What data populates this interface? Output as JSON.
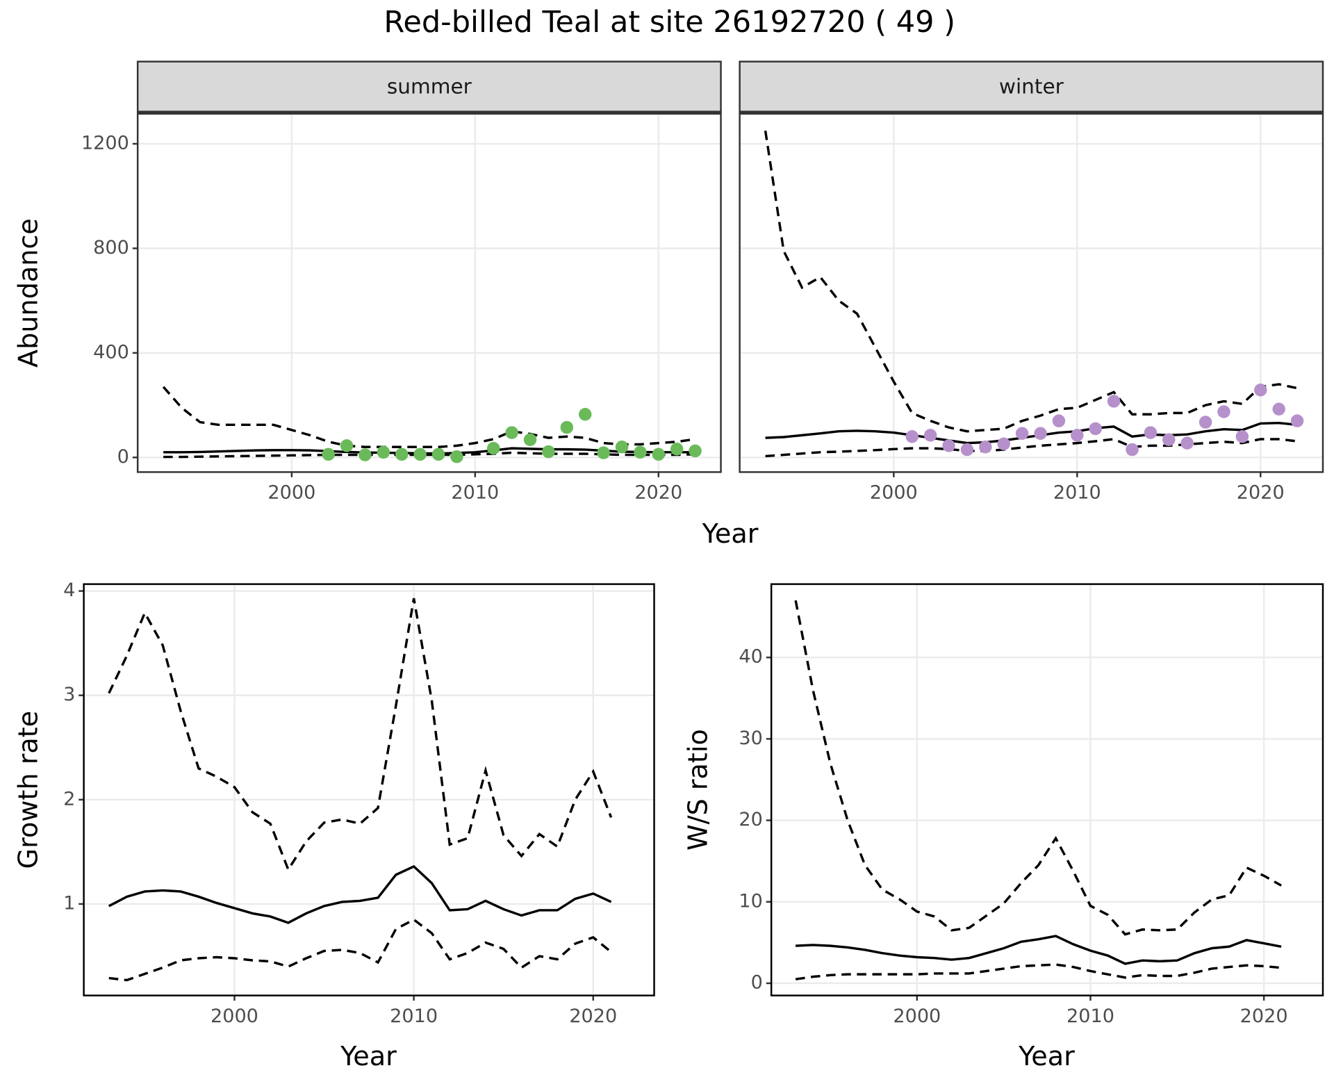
{
  "title": "Red-billed Teal at site 26192720 ( 49 )",
  "chart_data": [
    {
      "type": "line",
      "strip": "summer",
      "xlabel": "Year",
      "ylabel": "Abundance",
      "xlim": [
        1991.6,
        2023.4
      ],
      "ylim": [
        -56,
        1315
      ],
      "xticks": [
        2000,
        2010,
        2020
      ],
      "yticks": [
        0,
        400,
        800,
        1200
      ],
      "show_ytick_labels": true,
      "grid": true,
      "series": [
        {
          "style": "solid",
          "color": "#000000",
          "x": [
            1993,
            1994,
            1995,
            1996,
            1997,
            1998,
            1999,
            2000,
            2001,
            2002,
            2003,
            2004,
            2005,
            2006,
            2007,
            2008,
            2009,
            2010,
            2011,
            2012,
            2013,
            2014,
            2015,
            2016,
            2017,
            2018,
            2019,
            2020,
            2021,
            2022
          ],
          "values": [
            20,
            20,
            21,
            23,
            25,
            27,
            28,
            28,
            27,
            24,
            21,
            19,
            18,
            17,
            16,
            15,
            17,
            20,
            27,
            35,
            33,
            31,
            31,
            30,
            26,
            22,
            21,
            20,
            20,
            20
          ]
        },
        {
          "style": "dashed",
          "color": "#000000",
          "x": [
            1993,
            1994,
            1995,
            1996,
            1997,
            1998,
            1999,
            2000,
            2001,
            2002,
            2003,
            2004,
            2005,
            2006,
            2007,
            2008,
            2009,
            2010,
            2011,
            2012,
            2013,
            2014,
            2015,
            2016,
            2017,
            2018,
            2019,
            2020,
            2021,
            2022
          ],
          "values": [
            270,
            190,
            135,
            125,
            125,
            125,
            125,
            105,
            85,
            60,
            45,
            40,
            40,
            40,
            40,
            40,
            45,
            55,
            70,
            100,
            90,
            75,
            80,
            75,
            55,
            50,
            50,
            55,
            60,
            70
          ]
        },
        {
          "style": "dashed",
          "color": "#000000",
          "x": [
            1993,
            1994,
            1995,
            1996,
            1997,
            1998,
            1999,
            2000,
            2001,
            2002,
            2003,
            2004,
            2005,
            2006,
            2007,
            2008,
            2009,
            2010,
            2011,
            2012,
            2013,
            2014,
            2015,
            2016,
            2017,
            2018,
            2019,
            2020,
            2021,
            2022
          ],
          "values": [
            2,
            2,
            3,
            4,
            5,
            6,
            7,
            8,
            9,
            10,
            10,
            10,
            10,
            10,
            10,
            10,
            10,
            12,
            14,
            18,
            16,
            14,
            14,
            14,
            12,
            10,
            10,
            10,
            10,
            12
          ]
        },
        {
          "style": "points",
          "color": "#6aba5a",
          "x": [
            2002,
            2003,
            2004,
            2005,
            2006,
            2007,
            2008,
            2009,
            2011,
            2012,
            2013,
            2014,
            2015,
            2016,
            2017,
            2018,
            2019,
            2020,
            2021,
            2022
          ],
          "values": [
            12,
            45,
            10,
            20,
            12,
            12,
            12,
            3,
            35,
            95,
            68,
            22,
            115,
            165,
            18,
            40,
            20,
            12,
            32,
            25
          ]
        }
      ]
    },
    {
      "type": "line",
      "strip": "winter",
      "xlim": [
        1991.6,
        2023.4
      ],
      "ylim": [
        -56,
        1315
      ],
      "xticks": [
        2000,
        2010,
        2020
      ],
      "yticks": [
        0,
        400,
        800,
        1200
      ],
      "show_ytick_labels": false,
      "grid": true,
      "series": [
        {
          "style": "solid",
          "color": "#000000",
          "x": [
            1993,
            1994,
            1995,
            1996,
            1997,
            1998,
            1999,
            2000,
            2001,
            2002,
            2003,
            2004,
            2005,
            2006,
            2007,
            2008,
            2009,
            2010,
            2011,
            2012,
            2013,
            2014,
            2015,
            2016,
            2017,
            2018,
            2019,
            2020,
            2021,
            2022
          ],
          "values": [
            75,
            78,
            85,
            92,
            100,
            102,
            100,
            95,
            85,
            75,
            65,
            55,
            58,
            65,
            75,
            85,
            95,
            100,
            112,
            118,
            80,
            88,
            85,
            88,
            100,
            108,
            105,
            130,
            132,
            125
          ]
        },
        {
          "style": "dashed",
          "color": "#000000",
          "x": [
            1993,
            1994,
            1995,
            1996,
            1997,
            1998,
            1999,
            2000,
            2001,
            2002,
            2003,
            2004,
            2005,
            2006,
            2007,
            2008,
            2009,
            2010,
            2011,
            2012,
            2013,
            2014,
            2015,
            2016,
            2017,
            2018,
            2019,
            2020,
            2021,
            2022
          ],
          "values": [
            1250,
            790,
            650,
            690,
            600,
            550,
            420,
            290,
            170,
            140,
            115,
            100,
            105,
            110,
            140,
            160,
            185,
            190,
            220,
            250,
            165,
            165,
            170,
            170,
            200,
            215,
            205,
            270,
            280,
            265
          ]
        },
        {
          "style": "dashed",
          "color": "#000000",
          "x": [
            1993,
            1994,
            1995,
            1996,
            1997,
            1998,
            1999,
            2000,
            2001,
            2002,
            2003,
            2004,
            2005,
            2006,
            2007,
            2008,
            2009,
            2010,
            2011,
            2012,
            2013,
            2014,
            2015,
            2016,
            2017,
            2018,
            2019,
            2020,
            2021,
            2022
          ],
          "values": [
            5,
            10,
            15,
            20,
            22,
            25,
            28,
            32,
            35,
            35,
            32,
            25,
            25,
            30,
            38,
            45,
            50,
            55,
            62,
            70,
            40,
            45,
            45,
            50,
            55,
            60,
            55,
            70,
            70,
            62
          ]
        },
        {
          "style": "points",
          "color": "#b690cb",
          "x": [
            2001,
            2002,
            2003,
            2004,
            2005,
            2006,
            2007,
            2008,
            2009,
            2010,
            2011,
            2012,
            2013,
            2014,
            2015,
            2016,
            2017,
            2018,
            2019,
            2020,
            2021,
            2022
          ],
          "values": [
            80,
            85,
            45,
            30,
            40,
            52,
            92,
            92,
            140,
            85,
            110,
            215,
            30,
            95,
            68,
            55,
            135,
            175,
            80,
            258,
            185,
            140
          ]
        }
      ]
    },
    {
      "type": "line",
      "xlabel": "Year",
      "ylabel": "Growth rate",
      "xlim": [
        1991.6,
        2023.4
      ],
      "ylim": [
        0.123,
        4.066
      ],
      "xticks": [
        2000,
        2010,
        2020
      ],
      "yticks": [
        1,
        2,
        3,
        4
      ],
      "show_ytick_labels": true,
      "grid": true,
      "series": [
        {
          "style": "solid",
          "color": "#000000",
          "x": [
            1993,
            1994,
            1995,
            1996,
            1997,
            1998,
            1999,
            2000,
            2001,
            2002,
            2003,
            2004,
            2005,
            2006,
            2007,
            2008,
            2009,
            2010,
            2011,
            2012,
            2013,
            2014,
            2015,
            2016,
            2017,
            2018,
            2019,
            2020,
            2021
          ],
          "values": [
            0.98,
            1.07,
            1.12,
            1.13,
            1.12,
            1.07,
            1.01,
            0.96,
            0.91,
            0.88,
            0.82,
            0.91,
            0.98,
            1.02,
            1.03,
            1.06,
            1.28,
            1.36,
            1.2,
            0.94,
            0.95,
            1.03,
            0.95,
            0.89,
            0.94,
            0.94,
            1.05,
            1.1,
            1.02
          ]
        },
        {
          "style": "dashed",
          "color": "#000000",
          "x": [
            1993,
            1994,
            1995,
            1996,
            1997,
            1998,
            1999,
            2000,
            2001,
            2002,
            2003,
            2004,
            2005,
            2006,
            2007,
            2008,
            2009,
            2010,
            2011,
            2012,
            2013,
            2014,
            2015,
            2016,
            2017,
            2018,
            2019,
            2020,
            2021
          ],
          "values": [
            3.02,
            3.38,
            3.79,
            3.48,
            2.85,
            2.3,
            2.22,
            2.12,
            1.88,
            1.77,
            1.33,
            1.6,
            1.78,
            1.81,
            1.77,
            1.92,
            2.9,
            3.93,
            2.95,
            1.57,
            1.63,
            2.28,
            1.66,
            1.46,
            1.67,
            1.55,
            2.0,
            2.27,
            1.83
          ]
        },
        {
          "style": "dashed",
          "color": "#000000",
          "x": [
            1993,
            1994,
            1995,
            1996,
            1997,
            1998,
            1999,
            2000,
            2001,
            2002,
            2003,
            2004,
            2005,
            2006,
            2007,
            2008,
            2009,
            2010,
            2011,
            2012,
            2013,
            2014,
            2015,
            2016,
            2017,
            2018,
            2019,
            2020,
            2021
          ],
          "values": [
            0.29,
            0.27,
            0.33,
            0.39,
            0.46,
            0.48,
            0.49,
            0.48,
            0.46,
            0.45,
            0.4,
            0.48,
            0.55,
            0.56,
            0.53,
            0.44,
            0.76,
            0.85,
            0.72,
            0.47,
            0.53,
            0.63,
            0.57,
            0.39,
            0.5,
            0.47,
            0.62,
            0.68,
            0.54
          ]
        }
      ]
    },
    {
      "type": "line",
      "xlabel": "Year",
      "ylabel": "W/S ratio",
      "xlim": [
        1991.6,
        2023.4
      ],
      "ylim": [
        -1.5,
        49
      ],
      "xticks": [
        2000,
        2010,
        2020
      ],
      "yticks": [
        0,
        10,
        20,
        30,
        40
      ],
      "show_ytick_labels": true,
      "grid": true,
      "series": [
        {
          "style": "solid",
          "color": "#000000",
          "x": [
            1993,
            1994,
            1995,
            1996,
            1997,
            1998,
            1999,
            2000,
            2001,
            2002,
            2003,
            2004,
            2005,
            2006,
            2007,
            2008,
            2009,
            2010,
            2011,
            2012,
            2013,
            2014,
            2015,
            2016,
            2017,
            2018,
            2019,
            2020,
            2021
          ],
          "values": [
            4.6,
            4.7,
            4.6,
            4.4,
            4.1,
            3.7,
            3.4,
            3.2,
            3.1,
            2.9,
            3.1,
            3.7,
            4.3,
            5.1,
            5.4,
            5.8,
            4.8,
            4.0,
            3.4,
            2.4,
            2.8,
            2.7,
            2.8,
            3.7,
            4.3,
            4.5,
            5.3,
            4.9,
            4.5
          ]
        },
        {
          "style": "dashed",
          "color": "#000000",
          "x": [
            1993,
            1994,
            1995,
            1996,
            1997,
            1998,
            1999,
            2000,
            2001,
            2002,
            2003,
            2004,
            2005,
            2006,
            2007,
            2008,
            2009,
            2010,
            2011,
            2012,
            2013,
            2014,
            2015,
            2016,
            2017,
            2018,
            2019,
            2020,
            2021
          ],
          "values": [
            47,
            36,
            27,
            20,
            14.5,
            11.5,
            10.3,
            8.8,
            8.2,
            6.5,
            6.8,
            8.3,
            9.8,
            12.3,
            14.5,
            17.8,
            13.8,
            9.5,
            8.4,
            6.0,
            6.6,
            6.5,
            6.6,
            8.7,
            10.3,
            10.8,
            14.2,
            13.2,
            12.0
          ]
        },
        {
          "style": "dashed",
          "color": "#000000",
          "x": [
            1993,
            1994,
            1995,
            1996,
            1997,
            1998,
            1999,
            2000,
            2001,
            2002,
            2003,
            2004,
            2005,
            2006,
            2007,
            2008,
            2009,
            2010,
            2011,
            2012,
            2013,
            2014,
            2015,
            2016,
            2017,
            2018,
            2019,
            2020,
            2021
          ],
          "values": [
            0.5,
            0.8,
            1.0,
            1.1,
            1.1,
            1.1,
            1.1,
            1.1,
            1.2,
            1.2,
            1.2,
            1.5,
            1.8,
            2.1,
            2.2,
            2.3,
            2.0,
            1.5,
            1.1,
            0.7,
            1.0,
            0.9,
            0.9,
            1.3,
            1.8,
            2.0,
            2.2,
            2.1,
            1.9
          ]
        }
      ]
    }
  ]
}
